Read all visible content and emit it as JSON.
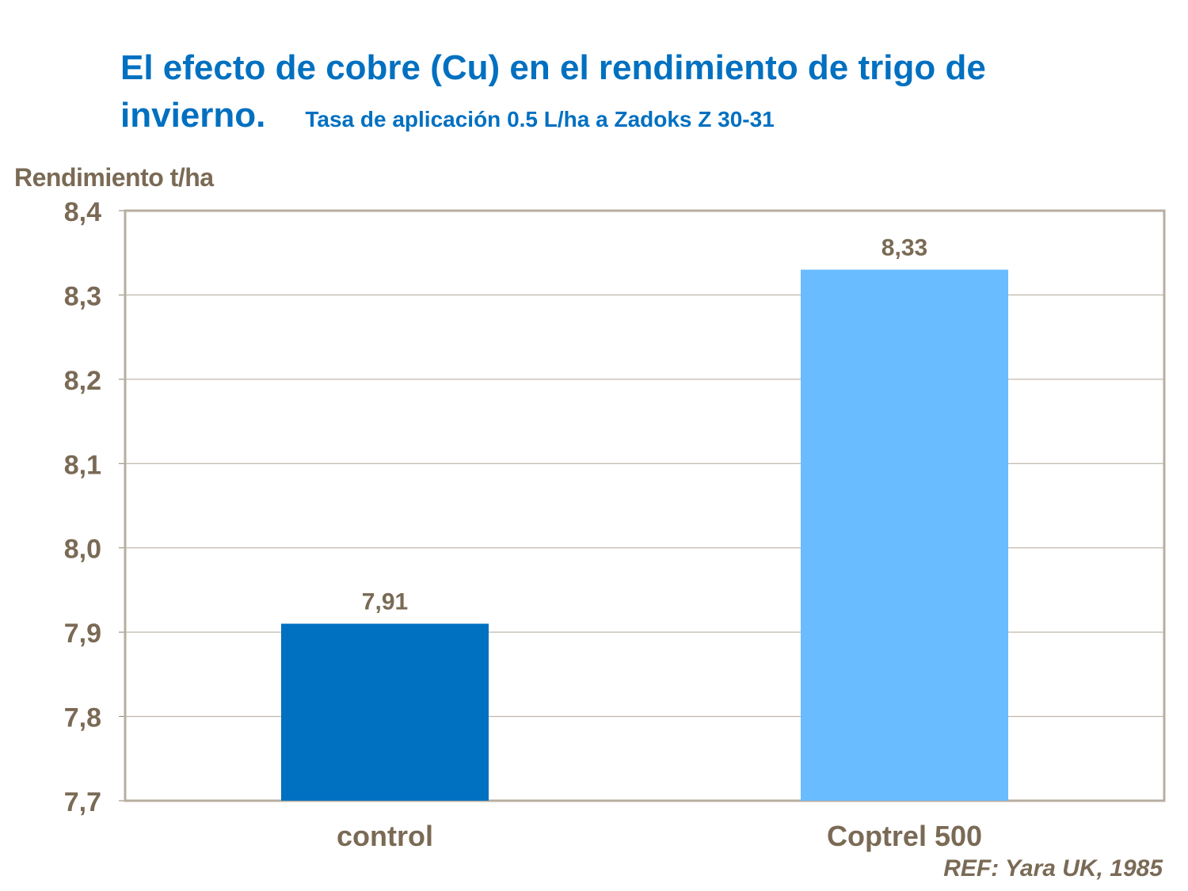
{
  "chart_data": {
    "type": "bar",
    "title": "El efecto de cobre (Cu) en el rendimiento de trigo de invierno.",
    "subtitle": "Tasa de aplicación  0.5 L/ha a Zadoks Z 30-31",
    "xlabel": "",
    "ylabel": "Rendimiento t/ha",
    "categories": [
      "control",
      "Coptrel 500"
    ],
    "values": [
      7.91,
      8.33
    ],
    "data_labels": [
      "7,91",
      "8,33"
    ],
    "bar_colors": [
      "#0070c0",
      "#69bcff"
    ],
    "ylim": [
      7.7,
      8.4
    ],
    "yticks": [
      7.7,
      7.8,
      7.9,
      8.0,
      8.1,
      8.2,
      8.3,
      8.4
    ],
    "ytick_labels": [
      "7,7",
      "7,8",
      "7,9",
      "8,0",
      "8,1",
      "8,2",
      "8,3",
      "8,4"
    ],
    "grid": true,
    "legend": "none",
    "annotation": "REF: Yara UK, 1985"
  }
}
